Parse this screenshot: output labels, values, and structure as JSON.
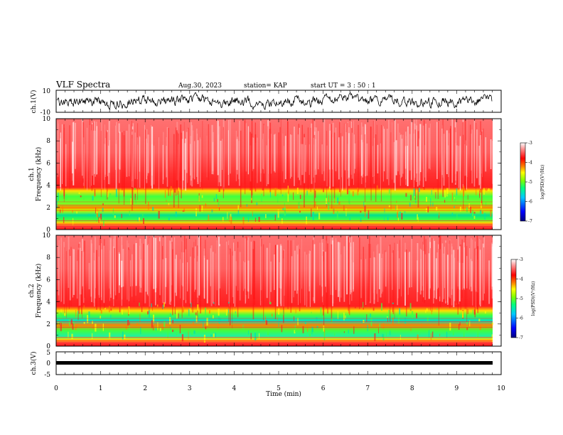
{
  "header": {
    "title": "VLF Spectra",
    "date": "Aug.30, 2023",
    "station": "station= KAP",
    "start": "start  UT =   3  : 50 : 1"
  },
  "chart_data": [
    {
      "type": "line",
      "ylabel": "ch.1(V)",
      "ylim": [
        -10,
        10
      ],
      "yticks": [
        "10",
        "-10"
      ],
      "xlim": [
        0,
        10
      ]
    },
    {
      "type": "heatmap",
      "ylabel_line1": "ch.1",
      "ylabel_line2": "Frequency (kHz)",
      "ylim": [
        0,
        10
      ],
      "yticks": [
        "0",
        "2",
        "4",
        "6",
        "8",
        "10"
      ],
      "xlim": [
        0,
        10
      ],
      "colorbar": {
        "label": "log(PSD)(V²/Hz)",
        "ticks": [
          "-3",
          "-4",
          "-5",
          "-6",
          "-7"
        ],
        "range": [
          -7,
          -3
        ]
      }
    },
    {
      "type": "heatmap",
      "ylabel_line1": "ch.2",
      "ylabel_line2": "Frequency (kHz)",
      "ylim": [
        0,
        10
      ],
      "yticks": [
        "0",
        "2",
        "4",
        "6",
        "8",
        "10"
      ],
      "xlim": [
        0,
        10
      ],
      "colorbar": {
        "label": "log(PSD)(V²/Hz)",
        "ticks": [
          "-3",
          "-4",
          "-5",
          "-6",
          "-7"
        ],
        "range": [
          -7,
          -3
        ]
      }
    },
    {
      "type": "line",
      "ylabel": "ch.3(V)",
      "ylim": [
        -5,
        5
      ],
      "yticks": [
        "5",
        "0",
        "-5"
      ],
      "xlim": [
        0,
        10
      ],
      "xlabel": "Time (min)",
      "xticks": [
        "0",
        "1",
        "2",
        "3",
        "4",
        "5",
        "6",
        "7",
        "8",
        "9",
        "10"
      ]
    }
  ],
  "colors": {
    "line": "#000000",
    "colormap": [
      "#000080",
      "#0000ff",
      "#00c8ff",
      "#00ff80",
      "#80ff00",
      "#ffff00",
      "#ff8000",
      "#ff0000",
      "#ff8080",
      "#ffffff"
    ]
  }
}
